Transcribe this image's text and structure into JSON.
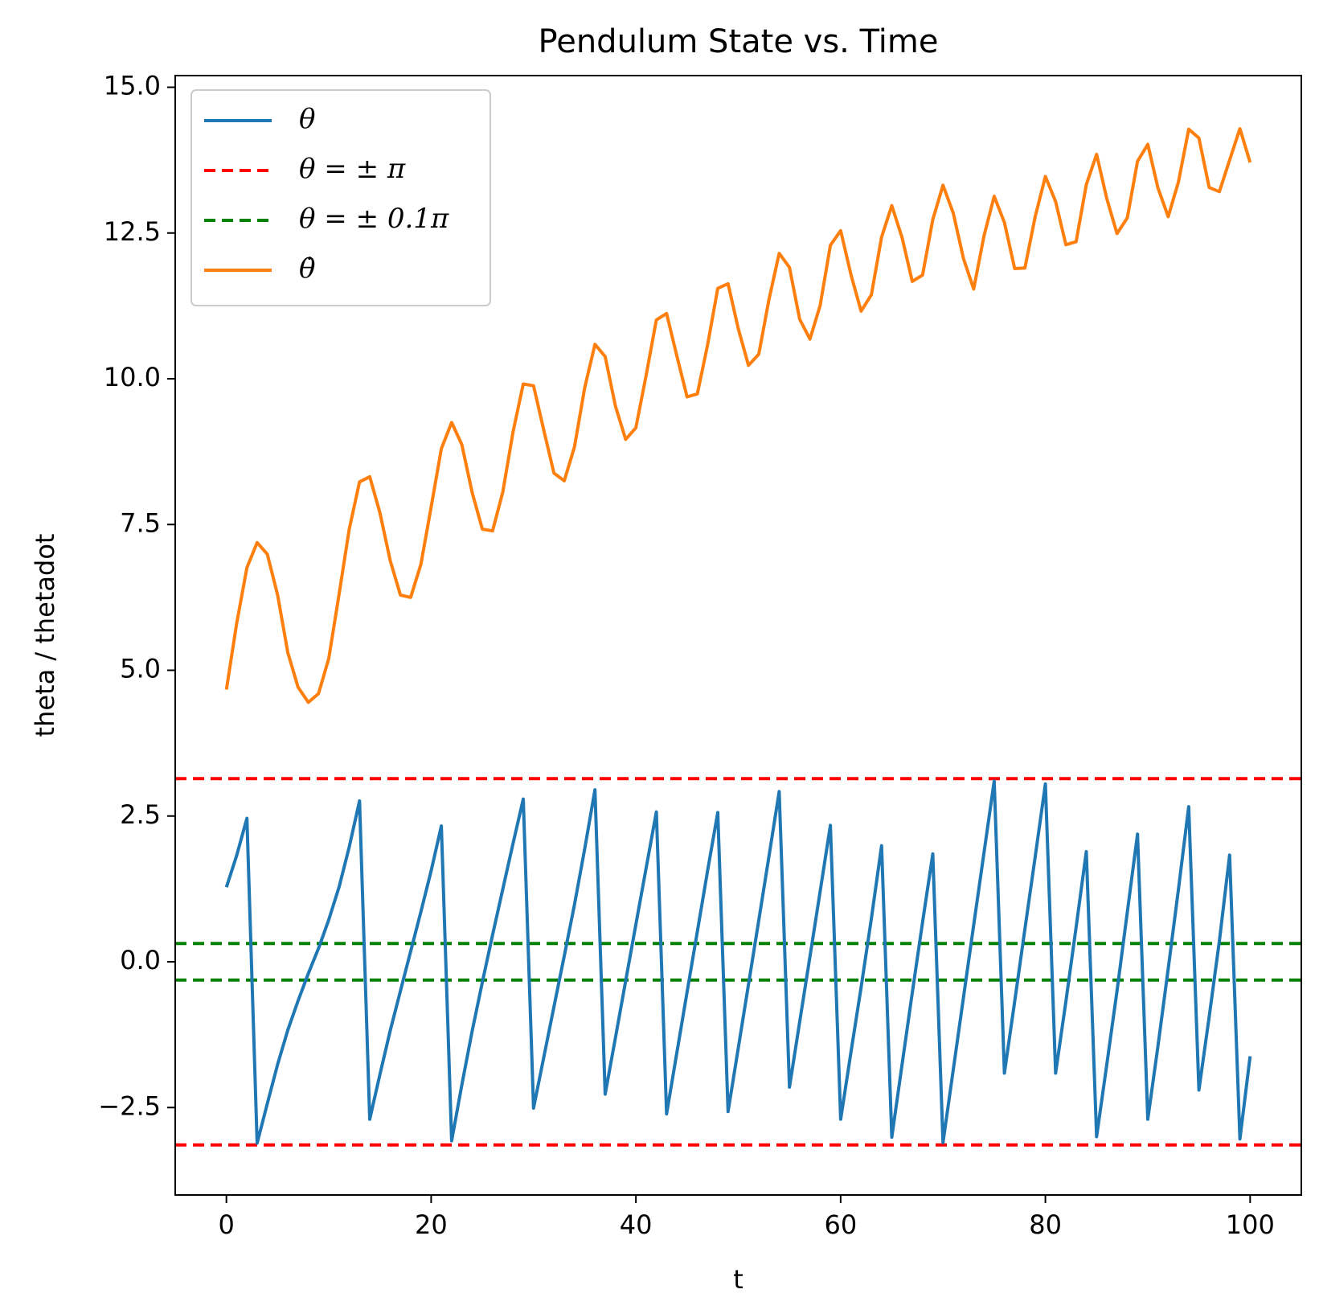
{
  "chart_data": {
    "type": "line",
    "title": "Pendulum State vs. Time",
    "xlabel": "t",
    "ylabel": "theta / thetadot",
    "xlim": [
      -5,
      105
    ],
    "ylim": [
      -4.0,
      15.2
    ],
    "xticks": [
      0,
      20,
      40,
      60,
      80,
      100
    ],
    "xtick_labels": [
      "0",
      "20",
      "40",
      "60",
      "80",
      "100"
    ],
    "yticks": [
      -2.5,
      0.0,
      2.5,
      5.0,
      7.5,
      10.0,
      12.5,
      15.0
    ],
    "ytick_labels": [
      "−2.5",
      "0.0",
      "2.5",
      "5.0",
      "7.5",
      "10.0",
      "12.5",
      "15.0"
    ],
    "grid": false,
    "legend_position": "top-left",
    "series": [
      {
        "name": "θ",
        "color": "#1f77b4",
        "style": "solid",
        "x": [
          0,
          1,
          2,
          3,
          4,
          5,
          6,
          7,
          8,
          9,
          10,
          11,
          12,
          13,
          14,
          15,
          16,
          17,
          18,
          19,
          20,
          21,
          22,
          23,
          24,
          25,
          26,
          27,
          28,
          29,
          30,
          31,
          32,
          33,
          34,
          35,
          36,
          37,
          38,
          39,
          40,
          41,
          42,
          43,
          44,
          45,
          46,
          47,
          48,
          49,
          50,
          51,
          52,
          53,
          54,
          55,
          56,
          57,
          58,
          59,
          60,
          61,
          62,
          63,
          64,
          65,
          66,
          67,
          68,
          69,
          70,
          71,
          72,
          73,
          74,
          75,
          76,
          77,
          78,
          79,
          80,
          81,
          82,
          83,
          84,
          85,
          86,
          87,
          88,
          89,
          90,
          91,
          92,
          93,
          94,
          95,
          96,
          97,
          98,
          99,
          100
        ],
        "values": [
          1.28,
          1.82,
          2.46,
          -3.11,
          -2.43,
          -1.76,
          -1.17,
          -0.67,
          -0.2,
          0.23,
          0.72,
          1.28,
          1.97,
          2.76,
          -2.7,
          -1.93,
          -1.18,
          -0.5,
          0.18,
          0.86,
          1.56,
          2.33,
          -3.07,
          -2.11,
          -1.19,
          -0.35,
          0.46,
          1.25,
          2.03,
          2.79,
          -2.51,
          -1.64,
          -0.77,
          0.1,
          0.98,
          1.94,
          2.95,
          -2.27,
          -1.3,
          -0.33,
          0.64,
          1.61,
          2.57,
          -2.61,
          -1.56,
          -0.52,
          0.52,
          1.56,
          2.56,
          -2.57,
          -1.48,
          -0.39,
          0.71,
          1.81,
          2.92,
          -2.15,
          -1.03,
          0.09,
          1.21,
          2.34,
          -2.7,
          -1.56,
          -0.44,
          0.74,
          1.99,
          -3.01,
          -1.76,
          -0.53,
          0.68,
          1.85,
          -3.1,
          -1.85,
          -0.61,
          0.63,
          1.87,
          3.1,
          -1.91,
          -0.68,
          0.56,
          1.8,
          3.05,
          -1.91,
          -0.68,
          0.59,
          1.89,
          -3.0,
          -1.76,
          -0.5,
          0.85,
          2.19,
          -2.7,
          -1.44,
          -0.12,
          1.25,
          2.66,
          -2.2,
          -0.94,
          0.36,
          1.83,
          -3.04,
          -1.62
        ]
      },
      {
        "name": "θ = ± π",
        "color": "#ff0000",
        "style": "dashed",
        "hlines": [
          3.14159,
          -3.14159
        ]
      },
      {
        "name": "θ = ± 0.1π",
        "color": "#008000",
        "style": "dashed",
        "hlines": [
          0.314159,
          -0.314159
        ]
      },
      {
        "name": "θ̇",
        "color": "#ff7f0e",
        "style": "solid",
        "x": [
          0,
          1,
          2,
          3,
          4,
          5,
          6,
          7,
          8,
          9,
          10,
          11,
          12,
          13,
          14,
          15,
          16,
          17,
          18,
          19,
          20,
          21,
          22,
          23,
          24,
          25,
          26,
          27,
          28,
          29,
          30,
          31,
          32,
          33,
          34,
          35,
          36,
          37,
          38,
          39,
          40,
          41,
          42,
          43,
          44,
          45,
          46,
          47,
          48,
          49,
          50,
          51,
          52,
          53,
          54,
          55,
          56,
          57,
          58,
          59,
          60,
          61,
          62,
          63,
          64,
          65,
          66,
          67,
          68,
          69,
          70,
          71,
          72,
          73,
          74,
          75,
          76,
          77,
          78,
          79,
          80,
          81,
          82,
          83,
          84,
          85,
          86,
          87,
          88,
          89,
          90,
          91,
          92,
          93,
          94,
          95,
          96,
          97,
          98,
          99,
          100
        ],
        "values": [
          4.67,
          5.8,
          6.76,
          7.19,
          6.99,
          6.29,
          5.3,
          4.71,
          4.45,
          4.6,
          5.2,
          6.3,
          7.42,
          8.23,
          8.32,
          7.7,
          6.88,
          6.29,
          6.25,
          6.82,
          7.8,
          8.8,
          9.25,
          8.87,
          8.05,
          7.42,
          7.39,
          8.06,
          9.09,
          9.91,
          9.88,
          9.12,
          8.38,
          8.25,
          8.83,
          9.85,
          10.59,
          10.38,
          9.53,
          8.96,
          9.16,
          10.06,
          11.01,
          11.12,
          10.39,
          9.69,
          9.74,
          10.58,
          11.55,
          11.63,
          10.86,
          10.23,
          10.42,
          11.36,
          12.15,
          11.91,
          11.02,
          10.68,
          11.26,
          12.29,
          12.54,
          11.79,
          11.16,
          11.44,
          12.43,
          12.97,
          12.42,
          11.67,
          11.78,
          12.73,
          13.32,
          12.84,
          12.06,
          11.54,
          12.45,
          13.13,
          12.68,
          11.89,
          11.9,
          12.78,
          13.47,
          13.04,
          12.3,
          12.35,
          13.33,
          13.85,
          13.09,
          12.49,
          12.76,
          13.73,
          14.02,
          13.27,
          12.78,
          13.38,
          14.28,
          14.13,
          13.28,
          13.21,
          13.75,
          14.29,
          13.71
        ]
      }
    ]
  }
}
